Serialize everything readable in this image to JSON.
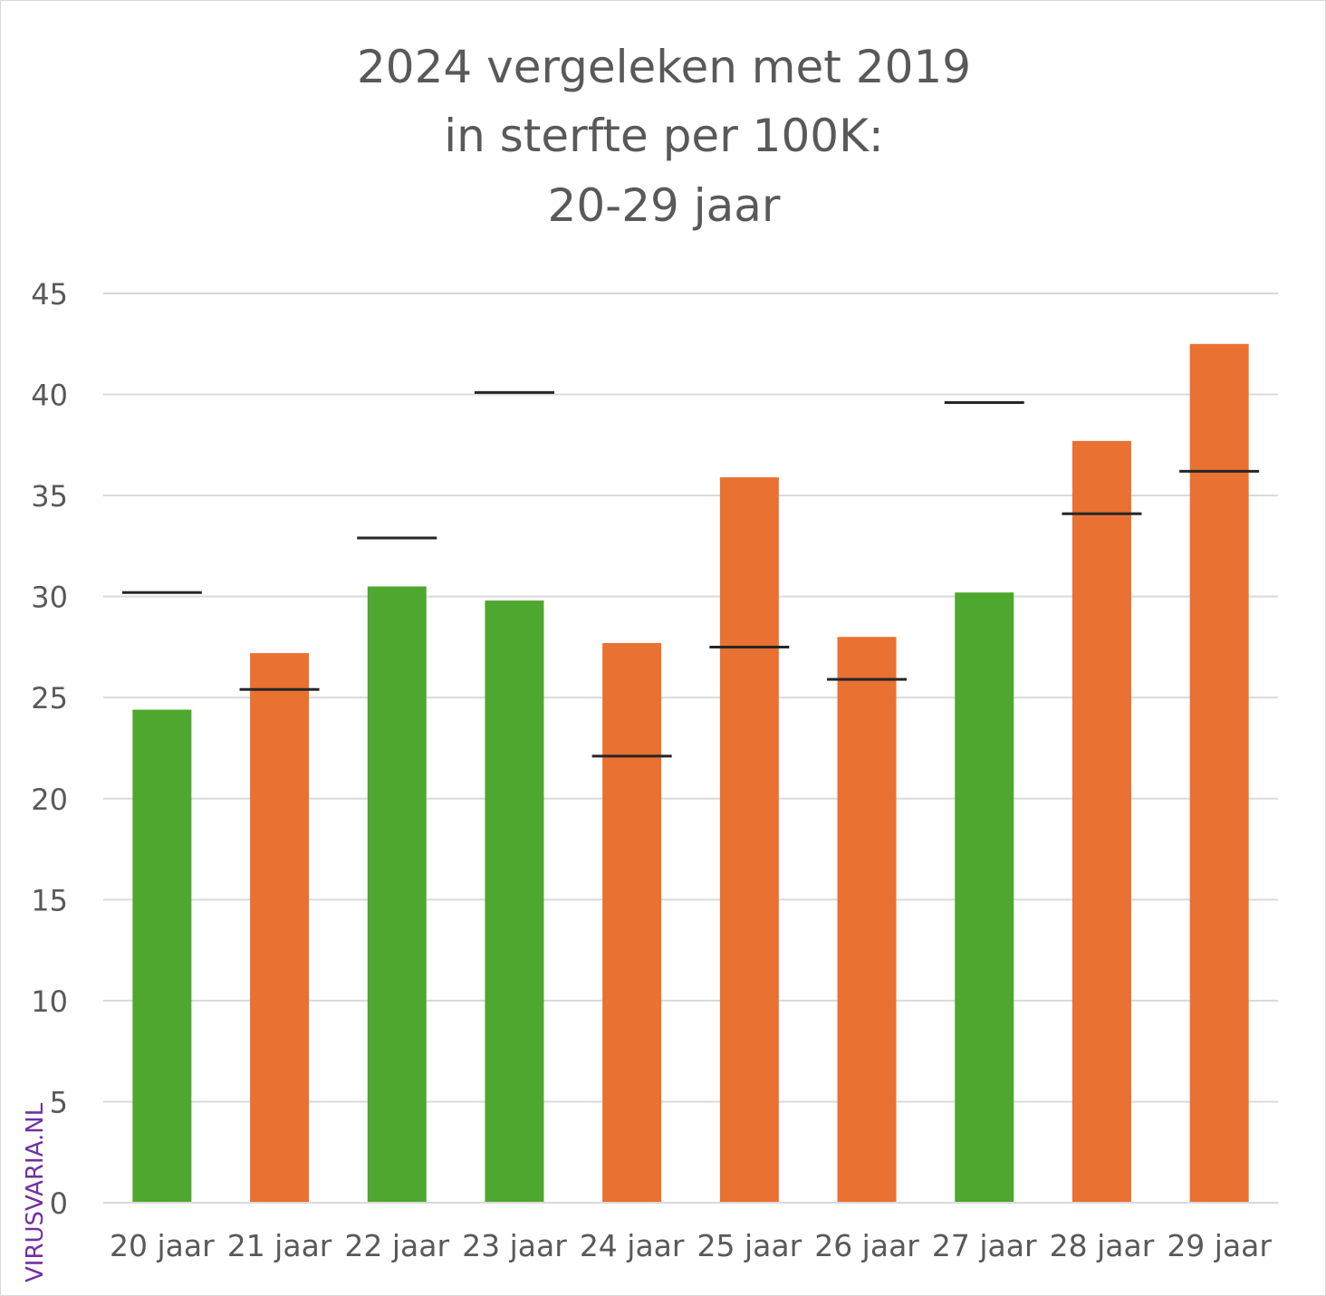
{
  "chart_data": {
    "type": "bar",
    "title_lines": [
      "2024 vergeleken met 2019",
      "in sterfte per 100K:",
      "20-29 jaar"
    ],
    "categories": [
      "20 jaar",
      "21 jaar",
      "22 jaar",
      "23 jaar",
      "24 jaar",
      "25 jaar",
      "26 jaar",
      "27 jaar",
      "28 jaar",
      "29 jaar"
    ],
    "series": [
      {
        "name": "2024",
        "type": "bar",
        "values": [
          24.4,
          27.2,
          30.5,
          29.8,
          27.7,
          35.9,
          28.0,
          30.2,
          37.7,
          42.5
        ]
      },
      {
        "name": "2019",
        "type": "marker-line",
        "values": [
          30.2,
          25.4,
          32.9,
          40.1,
          22.1,
          27.5,
          25.9,
          39.6,
          34.1,
          36.2
        ]
      }
    ],
    "colors": {
      "lower": "#4ea72e",
      "higher": "#e97132",
      "marker": "#262626",
      "grid": "#d9d9d9",
      "watermark": "#7030a0"
    },
    "ylim": [
      0,
      45
    ],
    "yticks": [
      0,
      5,
      10,
      15,
      20,
      25,
      30,
      35,
      40,
      45
    ],
    "grid": true,
    "xlabel": "",
    "ylabel": "",
    "watermark": "VIRUSVARIA.NL"
  }
}
